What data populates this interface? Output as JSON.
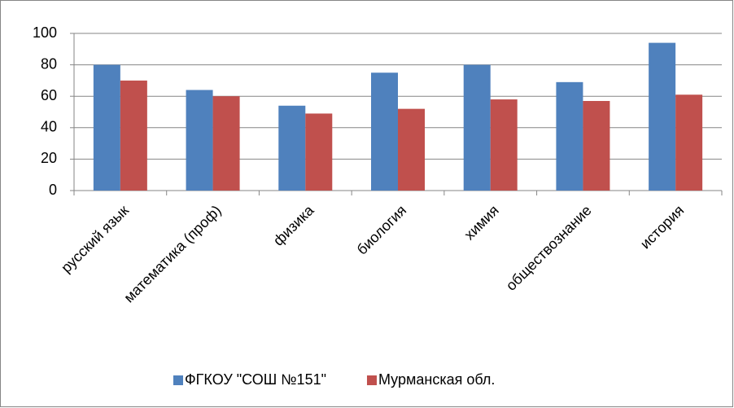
{
  "chart_data": {
    "type": "bar",
    "categories": [
      "русский язык",
      "математика (проф)",
      "физика",
      "биология",
      "химия",
      "обществознание",
      "история"
    ],
    "series": [
      {
        "name": "ФГКОУ \"СОШ №151\"",
        "color": "#4f81bd",
        "values": [
          80,
          64,
          54,
          75,
          80,
          69,
          94
        ]
      },
      {
        "name": "Мурманская обл.",
        "color": "#c0504d",
        "values": [
          70,
          60,
          49,
          52,
          58,
          57,
          61
        ]
      }
    ],
    "ylim": [
      0,
      100
    ],
    "yticks": [
      0,
      20,
      40,
      60,
      80,
      100
    ],
    "grid": true,
    "legend": "bottom"
  }
}
